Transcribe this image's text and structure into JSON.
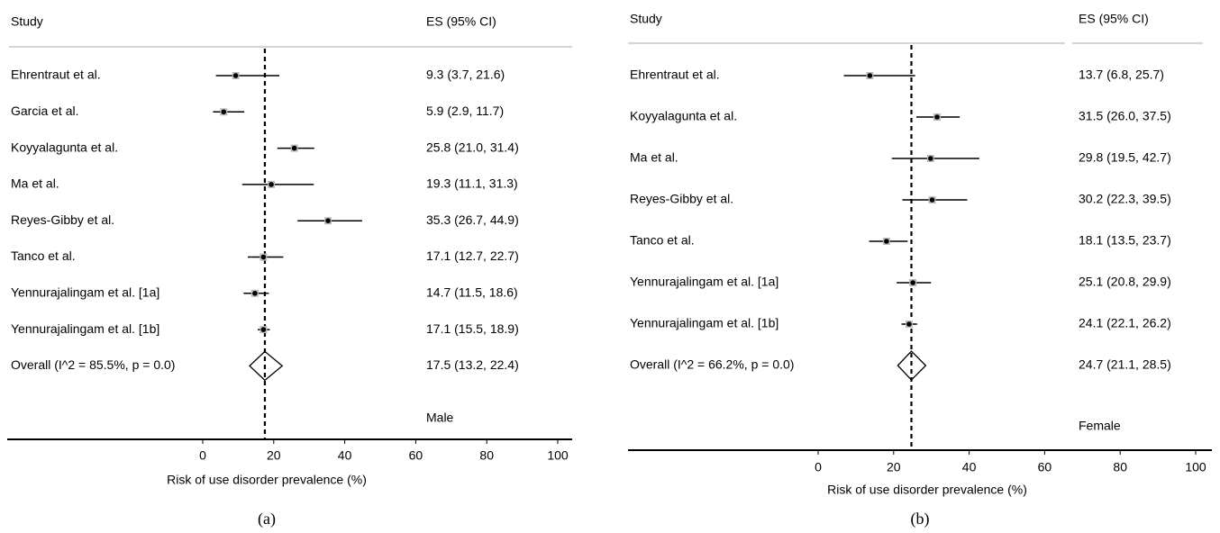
{
  "chart_data": [
    {
      "type": "forest",
      "caption": "(a)",
      "study_header": "Study",
      "es_header": "ES (95% CI)",
      "subgroup": "Male",
      "xlabel": "Risk of use disorder prevalence (%)",
      "xlim": [
        0,
        100
      ],
      "xticks": [
        0,
        20,
        40,
        60,
        80,
        100
      ],
      "categories": [
        "Ehrentraut et al.",
        "Garcia et al.",
        "Koyyalagunta et al.",
        "Ma et al.",
        "Reyes-Gibby et al.",
        "Tanco et al.",
        "Yennurajalingam et al. [1a]",
        "Yennurajalingam et al. [1b]"
      ],
      "values": [
        9.3,
        5.9,
        25.8,
        19.3,
        35.3,
        17.1,
        14.7,
        17.1
      ],
      "lower": [
        3.7,
        2.9,
        21.0,
        11.1,
        26.7,
        12.7,
        11.5,
        15.5
      ],
      "upper": [
        21.6,
        11.7,
        31.4,
        31.3,
        44.9,
        22.7,
        18.6,
        18.9
      ],
      "value_labels": [
        "9.3 (3.7, 21.6)",
        "5.9 (2.9, 11.7)",
        "25.8 (21.0, 31.4)",
        "19.3 (11.1, 31.3)",
        "35.3 (26.7, 44.9)",
        "17.1 (12.7, 22.7)",
        "14.7 (11.5, 18.6)",
        "17.1 (15.5, 18.9)"
      ],
      "overall": {
        "name": "Overall  (I^2 = 85.5%, p = 0.0)",
        "value": 17.5,
        "lower": 13.2,
        "upper": 22.4,
        "value_label": "17.5 (13.2, 22.4)"
      }
    },
    {
      "type": "forest",
      "caption": "(b)",
      "study_header": "Study",
      "es_header": "ES (95% CI)",
      "subgroup": "Female",
      "xlabel": "Risk of use disorder prevalence (%)",
      "xlim": [
        0,
        100
      ],
      "xticks": [
        0,
        20,
        40,
        60,
        80,
        100
      ],
      "categories": [
        "Ehrentraut et al.",
        "Koyyalagunta et al.",
        "Ma et al.",
        "Reyes-Gibby et al.",
        "Tanco et al.",
        "Yennurajalingam et al. [1a]",
        "Yennurajalingam et al. [1b]"
      ],
      "values": [
        13.7,
        31.5,
        29.8,
        30.2,
        18.1,
        25.1,
        24.1
      ],
      "lower": [
        6.8,
        26.0,
        19.5,
        22.3,
        13.5,
        20.8,
        22.1
      ],
      "upper": [
        25.7,
        37.5,
        42.7,
        39.5,
        23.7,
        29.9,
        26.2
      ],
      "value_labels": [
        "13.7 (6.8, 25.7)",
        "31.5 (26.0, 37.5)",
        "29.8 (19.5, 42.7)",
        "30.2 (22.3, 39.5)",
        "18.1 (13.5, 23.7)",
        "25.1 (20.8, 29.9)",
        "24.1 (22.1, 26.2)"
      ],
      "overall": {
        "name": "Overall  (I^2 = 66.2%, p = 0.0)",
        "value": 24.7,
        "lower": 21.1,
        "upper": 28.5,
        "value_label": "24.7 (21.1, 28.5)"
      }
    }
  ]
}
